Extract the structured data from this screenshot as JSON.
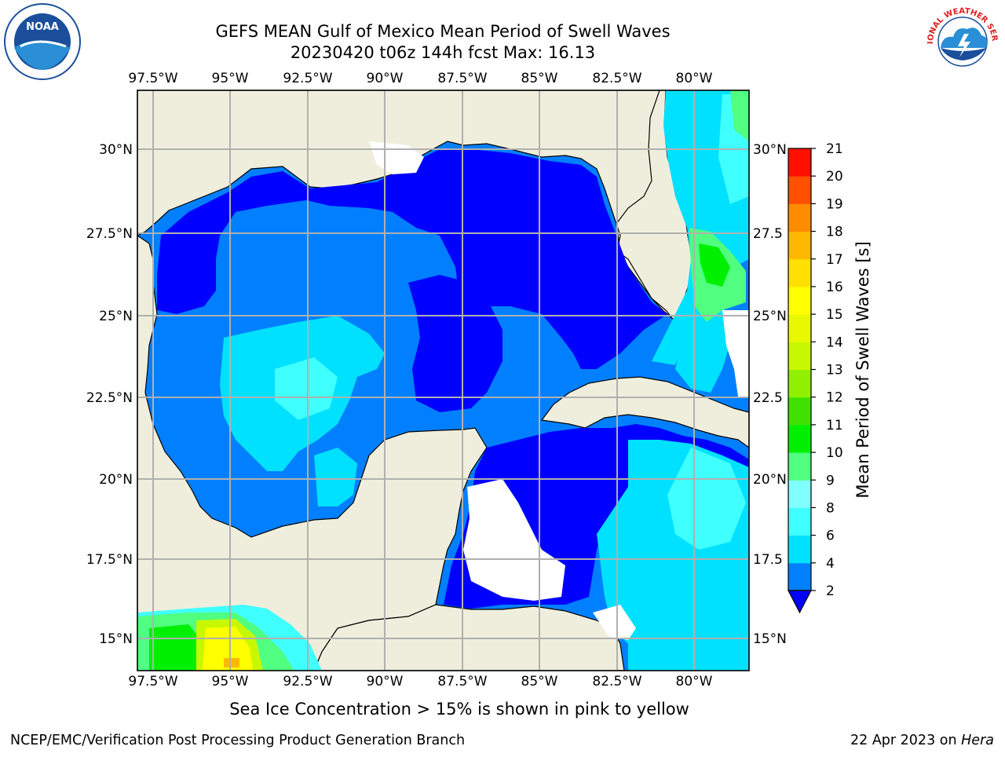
{
  "header": {
    "title_line1": "GEFS MEAN Gulf of Mexico Mean Period of Swell Waves",
    "title_line2": "20230420 t06z 144h fcst   Max: 16.13"
  },
  "map": {
    "lon_ticks": [
      "97.5°W",
      "95°W",
      "92.5°W",
      "90°W",
      "87.5°W",
      "85°W",
      "82.5°W",
      "80°W"
    ],
    "lat_ticks": [
      "30°N",
      "27.5°N",
      "25°N",
      "22.5°N",
      "20°N",
      "17.5°N",
      "15°N"
    ],
    "lat_ticks_right": [
      "30°N",
      "27.5",
      "25°N",
      "22.5",
      "20°N",
      "17.5",
      "15°N"
    ],
    "colors": {
      "land": "#efeedd",
      "grid": "#b0b0b0",
      "coast": "#000000"
    }
  },
  "colorbar": {
    "label": "Mean Period of Swell Waves [s]",
    "ticks": [
      "2",
      "4",
      "6",
      "8",
      "9",
      "10",
      "11",
      "12",
      "13",
      "14",
      "15",
      "16",
      "17",
      "18",
      "19",
      "20",
      "21"
    ],
    "colors": [
      "#0080ff",
      "#00e1ff",
      "#40ffff",
      "#80ffff",
      "#50ff80",
      "#00f000",
      "#40e000",
      "#90f000",
      "#c8f800",
      "#e8f800",
      "#ffff00",
      "#ffe000",
      "#ffb800",
      "#ff8c00",
      "#ff5000",
      "#ff1000"
    ],
    "under_color": "#0000ff"
  },
  "caption": "Sea Ice Concentration > 15% is shown in pink to yellow",
  "footer": {
    "org": "NCEP/EMC/Verification Post Processing Product Generation Branch",
    "date": "22 Apr 2023 on ",
    "host": "Hera"
  },
  "logos": {
    "noaa_text": "NOAA",
    "nws_text": "NATIONAL WEATHER SERVICE"
  }
}
